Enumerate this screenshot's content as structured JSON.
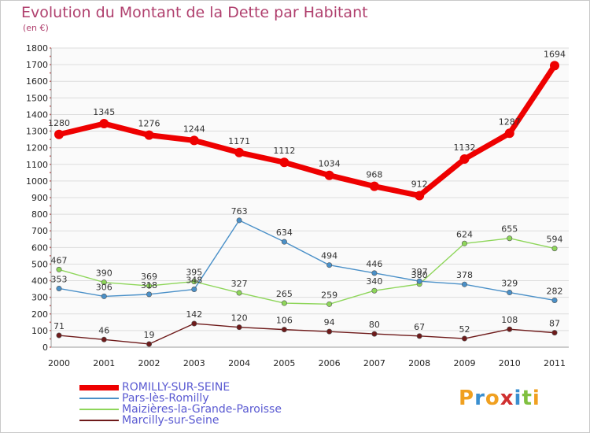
{
  "title": "Evolution du Montant de la Dette par Habitant",
  "subtitle": "(en €)",
  "logo": {
    "text": "Proxiti",
    "colors": [
      "#f0a020",
      "#3a8fd0",
      "#f0a020",
      "#d03030",
      "#3a8fd0",
      "#80c040",
      "#f0a020"
    ]
  },
  "chart_data": {
    "type": "line",
    "x": [
      "2000",
      "2001",
      "2002",
      "2003",
      "2004",
      "2005",
      "2006",
      "2007",
      "2008",
      "2009",
      "2010",
      "2011"
    ],
    "ylim": [
      0,
      1800
    ],
    "yticks": [
      "0",
      "100",
      "200",
      "300",
      "400",
      "500",
      "600",
      "700",
      "800",
      "900",
      "1000",
      "1100",
      "1200",
      "1300",
      "1400",
      "1500",
      "1600",
      "1700",
      "1800"
    ],
    "grid": true,
    "legend_position": "bottom-left",
    "series": [
      {
        "name": "ROMILLY-SUR-SEINE",
        "color": "#ee0000",
        "values": [
          1280,
          1345,
          1276,
          1244,
          1171,
          1112,
          1034,
          968,
          912,
          1132,
          1287,
          1694
        ],
        "labels": [
          "1280",
          "1345",
          "1276",
          "1244",
          "1171",
          "1112",
          "1034",
          "968",
          "912",
          "1132",
          "1287",
          "1694"
        ]
      },
      {
        "name": "Pars-lès-Romilly",
        "color": "#4a90c8",
        "values": [
          353,
          306,
          318,
          348,
          763,
          634,
          494,
          446,
          397,
          378,
          329,
          282
        ],
        "labels": [
          "353",
          "306",
          "318",
          "348",
          "763",
          "634",
          "494",
          "446",
          "397",
          "378",
          "329",
          "282"
        ]
      },
      {
        "name": "Maizières-la-Grande-Paroisse",
        "color": "#8ed65a",
        "values": [
          467,
          390,
          369,
          395,
          327,
          265,
          259,
          340,
          380,
          624,
          655,
          594
        ],
        "labels": [
          "467",
          "390",
          "369",
          "395",
          "327",
          "265",
          "259",
          "340",
          "380",
          "624",
          "655",
          "594"
        ]
      },
      {
        "name": "Marcilly-sur-Seine",
        "color": "#6e1a1a",
        "values": [
          71,
          46,
          19,
          142,
          120,
          106,
          94,
          80,
          67,
          52,
          108,
          87
        ],
        "labels": [
          "71",
          "46",
          "19",
          "142",
          "120",
          "106",
          "94",
          "80",
          "67",
          "52",
          "108",
          "87"
        ]
      }
    ]
  }
}
